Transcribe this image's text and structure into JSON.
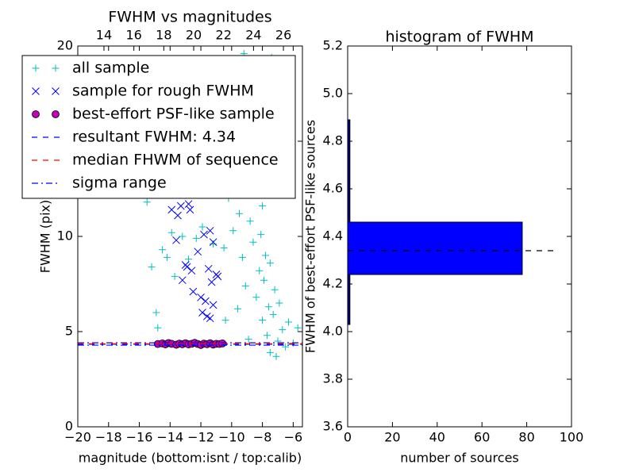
{
  "chart_data": [
    {
      "type": "scatter",
      "title": "FWHM vs magnitudes",
      "xlabel": "magnitude (bottom:isnt / top:calib)",
      "ylabel": "FWHM (pix)",
      "xlim": [
        -20,
        -5.4
      ],
      "xticks": [
        {
          "value": -20,
          "label": "−20"
        },
        {
          "value": -18,
          "label": "−18"
        },
        {
          "value": -16,
          "label": "−16"
        },
        {
          "value": -14,
          "label": "−14"
        },
        {
          "value": -12,
          "label": "−12"
        },
        {
          "value": -10,
          "label": "−10"
        },
        {
          "value": -8,
          "label": "−8"
        },
        {
          "value": -6,
          "label": "−6"
        }
      ],
      "x2lim": [
        12.25,
        27.27
      ],
      "x2ticks": [
        14,
        16,
        18,
        20,
        22,
        24,
        26
      ],
      "ylim": [
        0,
        20
      ],
      "yticks": [
        0,
        5,
        10,
        15,
        20
      ],
      "series": [
        {
          "name": "all sample",
          "color": "#00bfbf",
          "marker": "+",
          "x": [
            -15.5,
            -15.2,
            -14.9,
            -14.8,
            -14.5,
            -14.2,
            -13.9,
            -13.7,
            -13.2,
            -12.8,
            -12.3,
            -11.9,
            -11.2,
            -10.8,
            -10.5,
            -10.2,
            -9.9,
            -9.7,
            -9.5,
            -9.3,
            -9.1,
            -9.0,
            -8.8,
            -8.6,
            -8.5,
            -8.4,
            -8.3,
            -8.2,
            -8.1,
            -8.0,
            -7.9,
            -7.8,
            -7.7,
            -7.6,
            -7.5,
            -7.4,
            -7.3,
            -7.2,
            -7.0,
            -6.9,
            -6.7,
            -6.5,
            -6.3,
            -6.0,
            -5.7,
            -8.9,
            -9.6,
            -10.4,
            -9.2,
            -7.1,
            -7.5,
            -8.7,
            -8.0,
            -8.4
          ],
          "values": [
            11.8,
            8.4,
            6.0,
            5.2,
            9.3,
            8.9,
            10.2,
            7.9,
            10.0,
            8.8,
            9.9,
            10.5,
            9.6,
            12.6,
            9.4,
            12.0,
            10.3,
            13.8,
            11.2,
            8.9,
            7.4,
            15.2,
            10.8,
            9.7,
            12.4,
            6.8,
            19.1,
            8.2,
            10.1,
            5.6,
            7.7,
            9.0,
            4.8,
            6.3,
            8.6,
            19.4,
            5.9,
            7.2,
            4.5,
            6.5,
            5.1,
            4.2,
            5.5,
            4.4,
            5.2,
            4.6,
            6.2,
            5.6,
            19.6,
            3.7,
            3.9,
            14.0,
            11.6,
            16.5
          ]
        },
        {
          "name": "sample for rough FWHM",
          "color": "#0000ff",
          "marker": "x",
          "x": [
            -13.9,
            -13.5,
            -13.3,
            -12.8,
            -12.7,
            -13.0,
            -12.6,
            -12.2,
            -11.8,
            -11.4,
            -11.2,
            -11.5,
            -11.0,
            -11.3,
            -12.5,
            -13.2,
            -12.0,
            -11.7,
            -11.2,
            -11.9,
            -11.4,
            -12.9,
            -13.6,
            -10.9,
            -11.6
          ],
          "values": [
            11.4,
            11.1,
            11.6,
            11.7,
            11.4,
            8.5,
            8.2,
            9.2,
            10.1,
            10.3,
            9.7,
            8.3,
            8.0,
            7.6,
            7.1,
            7.7,
            6.8,
            6.6,
            6.4,
            6.0,
            5.7,
            8.4,
            9.8,
            7.9,
            5.8
          ]
        },
        {
          "name": "best-effort PSF-like sample",
          "color": "#bf00bf",
          "marker": "o",
          "x": [
            -14.8,
            -14.5,
            -14.3,
            -14.1,
            -13.9,
            -13.6,
            -13.4,
            -13.2,
            -13.0,
            -12.8,
            -12.6,
            -12.4,
            -12.2,
            -12.0,
            -11.8,
            -11.6,
            -11.4,
            -11.2,
            -11.0,
            -10.8,
            -10.6
          ],
          "values": [
            4.35,
            4.38,
            4.33,
            4.4,
            4.36,
            4.31,
            4.37,
            4.34,
            4.39,
            4.33,
            4.36,
            4.41,
            4.35,
            4.3,
            4.37,
            4.34,
            4.39,
            4.32,
            4.36,
            4.35,
            4.38
          ]
        }
      ],
      "lines": [
        {
          "name": "resultant FWHM: 4.34",
          "color": "#0000ff",
          "dash": "dashed",
          "values": [
            4.34
          ]
        },
        {
          "name": "median FHWM of sequence",
          "color": "#ff0000",
          "dash": "dashed",
          "values": [
            4.36
          ]
        },
        {
          "name": "sigma range",
          "color": "#0000ff",
          "dash": "dashdot",
          "values": [
            4.29,
            4.41
          ]
        }
      ]
    },
    {
      "type": "barh",
      "title": "histogram of FWHM",
      "xlabel": "number of sources",
      "ylabel": "FWHM of best-effort PSF-like sources",
      "xlim": [
        0,
        100
      ],
      "xticks": [
        0,
        20,
        40,
        60,
        80,
        100
      ],
      "ylim": [
        3.6,
        5.2
      ],
      "yticks": [
        3.6,
        3.8,
        {
          "value": 4.0,
          "label": "4.0"
        },
        4.2,
        4.4,
        4.6,
        4.8,
        {
          "value": 5.0,
          "label": "5.0"
        },
        5.2
      ],
      "series": [
        {
          "color": "#000080",
          "bins": [
            4.03,
            4.89
          ],
          "values": [
            1
          ]
        },
        {
          "color": "#0000ff",
          "bins": [
            4.24,
            4.46
          ],
          "values": [
            78
          ]
        }
      ],
      "lines": [
        {
          "color": "#000000",
          "dash": "dashed",
          "values": [
            4.34
          ]
        }
      ]
    }
  ]
}
